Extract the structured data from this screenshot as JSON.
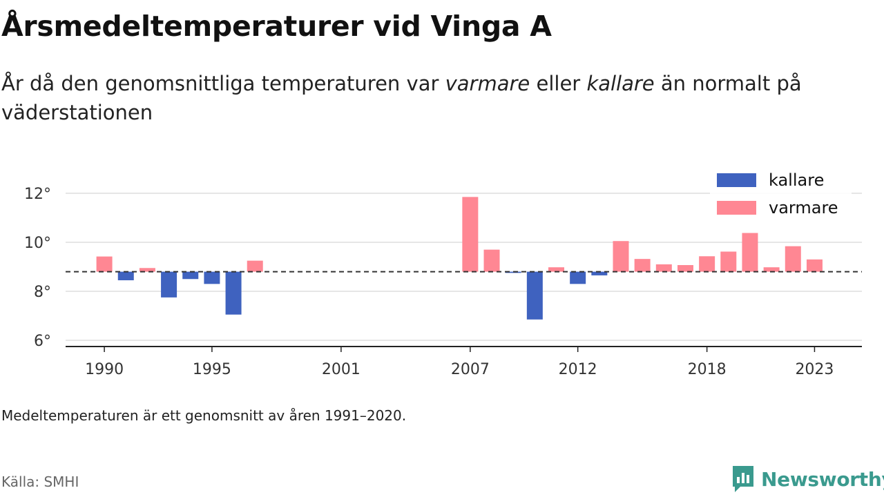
{
  "header": {
    "title": "Årsmedeltemperaturer vid Vinga A",
    "subtitle_pre": "År då den genomsnittliga temperaturen var ",
    "subtitle_warm": "varmare",
    "subtitle_mid": " eller ",
    "subtitle_cold": "kallare",
    "subtitle_post": " än normalt på väderstationen"
  },
  "footer": {
    "note": "Medeltemperaturen är ett genomsnitt av åren 1991–2020.",
    "source": "Källa: SMHI",
    "brand": "Newsworthy"
  },
  "colors": {
    "cold": "#3f62bf",
    "warm": "#ff8793",
    "grid": "#dddddd",
    "baseline": "#333333",
    "brand": "#3a9a8e"
  },
  "chart_data": {
    "type": "bar",
    "baseline": 8.8,
    "ylim": [
      5.8,
      12.6
    ],
    "yticks": [
      6,
      8,
      10,
      12
    ],
    "ytick_labels": [
      "6°",
      "8°",
      "10°",
      "12°"
    ],
    "xticks": [
      1990,
      1995,
      2001,
      2007,
      2012,
      2018,
      2023
    ],
    "xlim": [
      1988.2,
      2025.2
    ],
    "legend_position": "top-right",
    "series": [
      {
        "name": "kallare",
        "color": "#3f62bf"
      },
      {
        "name": "varmare",
        "color": "#ff8793"
      }
    ],
    "values": [
      {
        "year": 1990,
        "value": 9.42
      },
      {
        "year": 1991,
        "value": 8.45
      },
      {
        "year": 1992,
        "value": 8.95
      },
      {
        "year": 1993,
        "value": 7.75
      },
      {
        "year": 1994,
        "value": 8.5
      },
      {
        "year": 1995,
        "value": 8.3
      },
      {
        "year": 1996,
        "value": 7.05
      },
      {
        "year": 1997,
        "value": 9.25
      },
      {
        "year": 2007,
        "value": 11.85
      },
      {
        "year": 2008,
        "value": 9.7
      },
      {
        "year": 2009,
        "value": 8.75
      },
      {
        "year": 2010,
        "value": 6.85
      },
      {
        "year": 2011,
        "value": 8.98
      },
      {
        "year": 2012,
        "value": 8.3
      },
      {
        "year": 2013,
        "value": 8.65
      },
      {
        "year": 2014,
        "value": 10.05
      },
      {
        "year": 2015,
        "value": 9.32
      },
      {
        "year": 2016,
        "value": 9.1
      },
      {
        "year": 2017,
        "value": 9.07
      },
      {
        "year": 2018,
        "value": 9.43
      },
      {
        "year": 2019,
        "value": 9.62
      },
      {
        "year": 2020,
        "value": 10.38
      },
      {
        "year": 2021,
        "value": 8.98
      },
      {
        "year": 2022,
        "value": 9.84
      },
      {
        "year": 2023,
        "value": 9.3
      }
    ]
  }
}
